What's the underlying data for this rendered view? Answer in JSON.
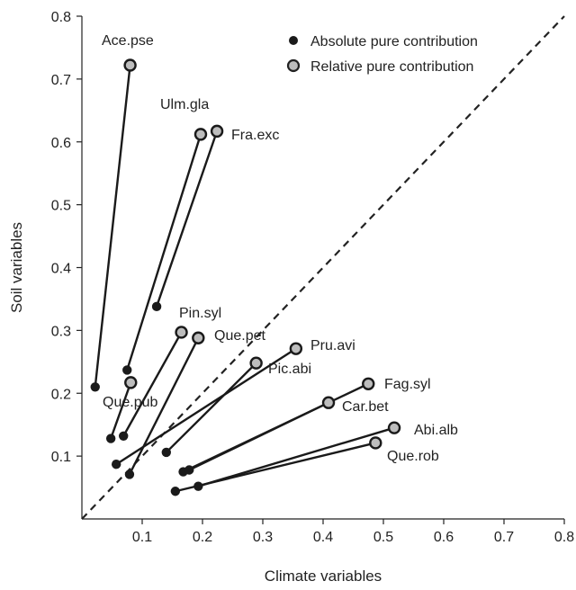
{
  "chart_data": {
    "type": "scatter",
    "xlabel": "Climate variables",
    "ylabel": "Soil variables",
    "xlim": [
      0,
      0.8
    ],
    "ylim": [
      0,
      0.8
    ],
    "xticks": [
      "0.1",
      "0.2",
      "0.3",
      "0.4",
      "0.5",
      "0.6",
      "0.7",
      "0.8"
    ],
    "yticks": [
      "0.1",
      "0.2",
      "0.3",
      "0.4",
      "0.5",
      "0.6",
      "0.7",
      "0.8"
    ],
    "legend": {
      "position": "top-right",
      "entries": [
        {
          "name": "Absolute pure contribution",
          "color": "#1a1a1a"
        },
        {
          "name": "Relative pure contribution",
          "color": "#bdbdbd"
        }
      ]
    },
    "reference_line": {
      "type": "1:1 diagonal",
      "style": "dashed"
    },
    "series": [
      {
        "name": "Absolute pure contribution",
        "color": "#1a1a1a"
      },
      {
        "name": "Relative pure contribution",
        "color": "#bdbdbd"
      }
    ],
    "species": [
      {
        "label": "Ace.pse",
        "absolute": [
          0.022,
          0.21
        ],
        "relative": [
          0.08,
          0.722
        ]
      },
      {
        "label": "Ulm.gla",
        "absolute": [
          0.075,
          0.237
        ],
        "relative": [
          0.197,
          0.612
        ]
      },
      {
        "label": "Fra.exc",
        "absolute": [
          0.124,
          0.338
        ],
        "relative": [
          0.224,
          0.617
        ]
      },
      {
        "label": "Pin.syl",
        "absolute": [
          0.069,
          0.132
        ],
        "relative": [
          0.165,
          0.297
        ]
      },
      {
        "label": "Que.pet",
        "absolute": [
          0.079,
          0.071
        ],
        "relative": [
          0.193,
          0.288
        ]
      },
      {
        "label": "Que.pub",
        "absolute": [
          0.048,
          0.128
        ],
        "relative": [
          0.081,
          0.217
        ]
      },
      {
        "label": "Pru.avi",
        "absolute": [
          0.057,
          0.087
        ],
        "relative": [
          0.355,
          0.271
        ]
      },
      {
        "label": "Pic.abi",
        "absolute": [
          0.14,
          0.106
        ],
        "relative": [
          0.289,
          0.248
        ]
      },
      {
        "label": "Fag.syl",
        "absolute": [
          0.168,
          0.075
        ],
        "relative": [
          0.475,
          0.215
        ]
      },
      {
        "label": "Car.bet",
        "absolute": [
          0.178,
          0.078
        ],
        "relative": [
          0.409,
          0.185
        ]
      },
      {
        "label": "Abi.alb",
        "absolute": [
          0.193,
          0.052
        ],
        "relative": [
          0.518,
          0.145
        ]
      },
      {
        "label": "Que.rob",
        "absolute": [
          0.155,
          0.044
        ],
        "relative": [
          0.487,
          0.121
        ]
      }
    ]
  }
}
